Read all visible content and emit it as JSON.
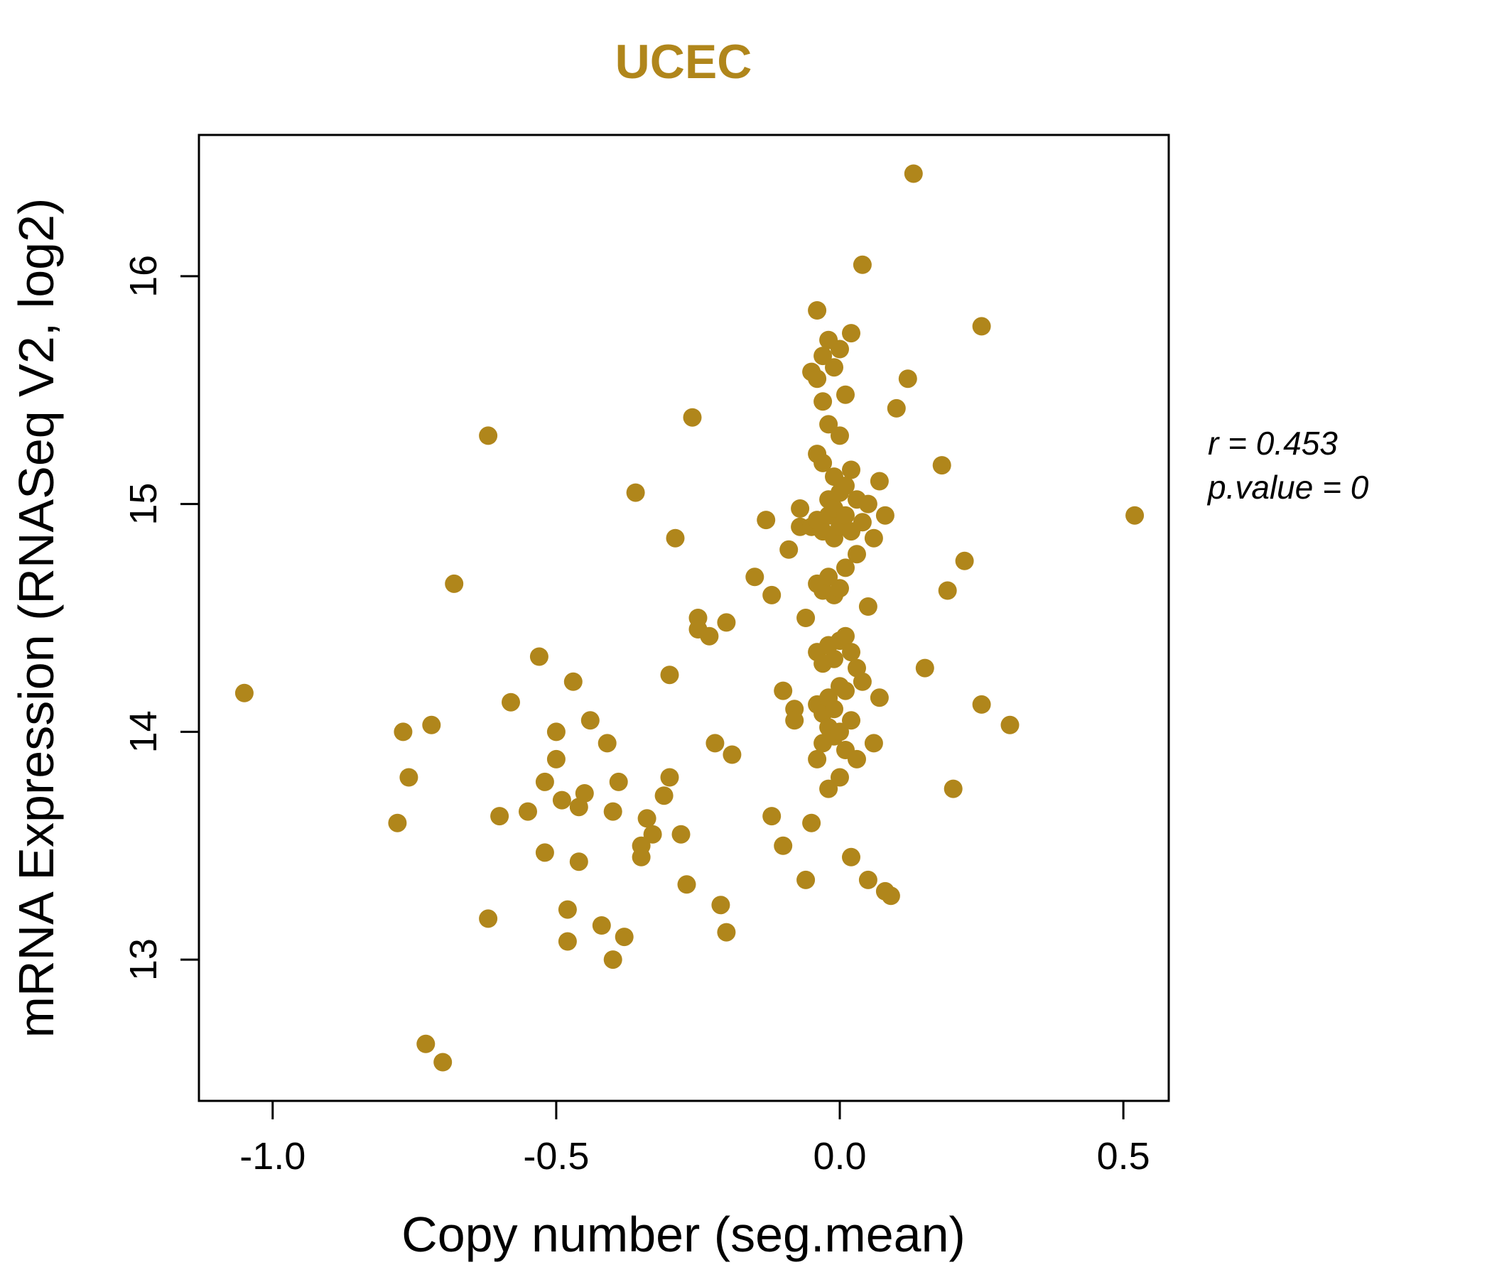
{
  "colors": {
    "point": "#B0861B",
    "title": "#B0861B",
    "axis": "#000000",
    "background": "#ffffff"
  },
  "annotation": {
    "line1": "r = 0.453",
    "line2": "p.value = 0"
  },
  "chart_data": {
    "type": "scatter",
    "title": "UCEC",
    "xlabel": "Copy number (seg.mean)",
    "ylabel": "mRNA Expression (RNASeq V2, log2)",
    "xlim": [
      -1.13,
      0.58
    ],
    "ylim": [
      12.38,
      16.62
    ],
    "x_ticks": [
      -1.0,
      -0.5,
      0.0,
      0.5
    ],
    "x_tick_labels": [
      "-1.0",
      "-0.5",
      "0.0",
      "0.5"
    ],
    "y_ticks": [
      13,
      14,
      15,
      16
    ],
    "y_tick_labels": [
      "13",
      "14",
      "15",
      "16"
    ],
    "grid": false,
    "legend": "none",
    "annotations": [
      "r = 0.453",
      "p.value = 0"
    ],
    "points": [
      [
        -1.05,
        14.17
      ],
      [
        -0.78,
        13.6
      ],
      [
        -0.77,
        14.0
      ],
      [
        -0.76,
        13.8
      ],
      [
        -0.73,
        12.63
      ],
      [
        -0.72,
        14.03
      ],
      [
        -0.7,
        12.55
      ],
      [
        -0.68,
        14.65
      ],
      [
        -0.62,
        15.3
      ],
      [
        -0.62,
        13.18
      ],
      [
        -0.6,
        13.63
      ],
      [
        -0.58,
        14.13
      ],
      [
        -0.55,
        13.65
      ],
      [
        -0.53,
        14.33
      ],
      [
        -0.52,
        13.78
      ],
      [
        -0.52,
        13.47
      ],
      [
        -0.5,
        14.0
      ],
      [
        -0.5,
        13.88
      ],
      [
        -0.49,
        13.7
      ],
      [
        -0.48,
        13.22
      ],
      [
        -0.48,
        13.08
      ],
      [
        -0.47,
        14.22
      ],
      [
        -0.46,
        13.67
      ],
      [
        -0.46,
        13.43
      ],
      [
        -0.45,
        13.73
      ],
      [
        -0.44,
        14.05
      ],
      [
        -0.42,
        13.15
      ],
      [
        -0.41,
        13.95
      ],
      [
        -0.4,
        13.65
      ],
      [
        -0.4,
        13.0
      ],
      [
        -0.39,
        13.78
      ],
      [
        -0.38,
        13.1
      ],
      [
        -0.36,
        15.05
      ],
      [
        -0.35,
        13.5
      ],
      [
        -0.35,
        13.45
      ],
      [
        -0.34,
        13.62
      ],
      [
        -0.33,
        13.55
      ],
      [
        -0.31,
        13.72
      ],
      [
        -0.3,
        14.25
      ],
      [
        -0.3,
        13.8
      ],
      [
        -0.29,
        14.85
      ],
      [
        -0.28,
        13.55
      ],
      [
        -0.27,
        13.33
      ],
      [
        -0.26,
        15.38
      ],
      [
        -0.25,
        14.5
      ],
      [
        -0.25,
        14.45
      ],
      [
        -0.23,
        14.42
      ],
      [
        -0.22,
        13.95
      ],
      [
        -0.21,
        13.24
      ],
      [
        -0.2,
        14.48
      ],
      [
        -0.2,
        13.12
      ],
      [
        -0.19,
        13.9
      ],
      [
        -0.15,
        14.68
      ],
      [
        -0.13,
        14.93
      ],
      [
        -0.12,
        14.6
      ],
      [
        -0.12,
        13.63
      ],
      [
        -0.1,
        14.18
      ],
      [
        -0.1,
        13.5
      ],
      [
        -0.09,
        14.8
      ],
      [
        -0.08,
        14.1
      ],
      [
        -0.08,
        14.05
      ],
      [
        -0.07,
        14.98
      ],
      [
        -0.07,
        14.9
      ],
      [
        -0.06,
        14.5
      ],
      [
        -0.06,
        13.35
      ],
      [
        -0.05,
        15.58
      ],
      [
        -0.05,
        14.9
      ],
      [
        -0.05,
        13.6
      ],
      [
        -0.04,
        15.85
      ],
      [
        -0.04,
        15.55
      ],
      [
        -0.04,
        15.22
      ],
      [
        -0.04,
        14.93
      ],
      [
        -0.04,
        14.65
      ],
      [
        -0.04,
        14.35
      ],
      [
        -0.04,
        14.12
      ],
      [
        -0.04,
        13.88
      ],
      [
        -0.03,
        15.65
      ],
      [
        -0.03,
        15.45
      ],
      [
        -0.03,
        15.18
      ],
      [
        -0.03,
        14.88
      ],
      [
        -0.03,
        14.62
      ],
      [
        -0.03,
        14.3
      ],
      [
        -0.03,
        14.08
      ],
      [
        -0.03,
        13.95
      ],
      [
        -0.02,
        15.72
      ],
      [
        -0.02,
        15.35
      ],
      [
        -0.02,
        15.02
      ],
      [
        -0.02,
        14.95
      ],
      [
        -0.02,
        14.68
      ],
      [
        -0.02,
        14.38
      ],
      [
        -0.02,
        14.15
      ],
      [
        -0.02,
        14.02
      ],
      [
        -0.02,
        13.75
      ],
      [
        -0.01,
        15.6
      ],
      [
        -0.01,
        15.12
      ],
      [
        -0.01,
        14.98
      ],
      [
        -0.01,
        14.85
      ],
      [
        -0.01,
        14.6
      ],
      [
        -0.01,
        14.32
      ],
      [
        -0.01,
        14.1
      ],
      [
        -0.01,
        13.98
      ],
      [
        0.0,
        15.68
      ],
      [
        0.0,
        15.3
      ],
      [
        0.0,
        15.05
      ],
      [
        0.0,
        14.9
      ],
      [
        0.0,
        14.63
      ],
      [
        0.0,
        14.4
      ],
      [
        0.0,
        14.2
      ],
      [
        0.0,
        14.0
      ],
      [
        0.0,
        13.8
      ],
      [
        0.01,
        15.48
      ],
      [
        0.01,
        15.08
      ],
      [
        0.01,
        14.95
      ],
      [
        0.01,
        14.72
      ],
      [
        0.01,
        14.42
      ],
      [
        0.01,
        14.18
      ],
      [
        0.01,
        13.92
      ],
      [
        0.02,
        15.75
      ],
      [
        0.02,
        15.15
      ],
      [
        0.02,
        14.88
      ],
      [
        0.02,
        14.35
      ],
      [
        0.02,
        14.05
      ],
      [
        0.02,
        13.45
      ],
      [
        0.03,
        15.02
      ],
      [
        0.03,
        14.78
      ],
      [
        0.03,
        14.28
      ],
      [
        0.03,
        13.88
      ],
      [
        0.04,
        16.05
      ],
      [
        0.04,
        14.92
      ],
      [
        0.04,
        14.22
      ],
      [
        0.05,
        15.0
      ],
      [
        0.05,
        14.55
      ],
      [
        0.05,
        13.35
      ],
      [
        0.06,
        14.85
      ],
      [
        0.06,
        13.95
      ],
      [
        0.07,
        15.1
      ],
      [
        0.07,
        14.15
      ],
      [
        0.08,
        14.95
      ],
      [
        0.08,
        13.3
      ],
      [
        0.09,
        13.28
      ],
      [
        0.1,
        15.42
      ],
      [
        0.12,
        15.55
      ],
      [
        0.13,
        16.45
      ],
      [
        0.15,
        14.28
      ],
      [
        0.18,
        15.17
      ],
      [
        0.19,
        14.62
      ],
      [
        0.2,
        13.75
      ],
      [
        0.22,
        14.75
      ],
      [
        0.25,
        15.78
      ],
      [
        0.25,
        14.12
      ],
      [
        0.3,
        14.03
      ],
      [
        0.52,
        14.95
      ]
    ]
  }
}
